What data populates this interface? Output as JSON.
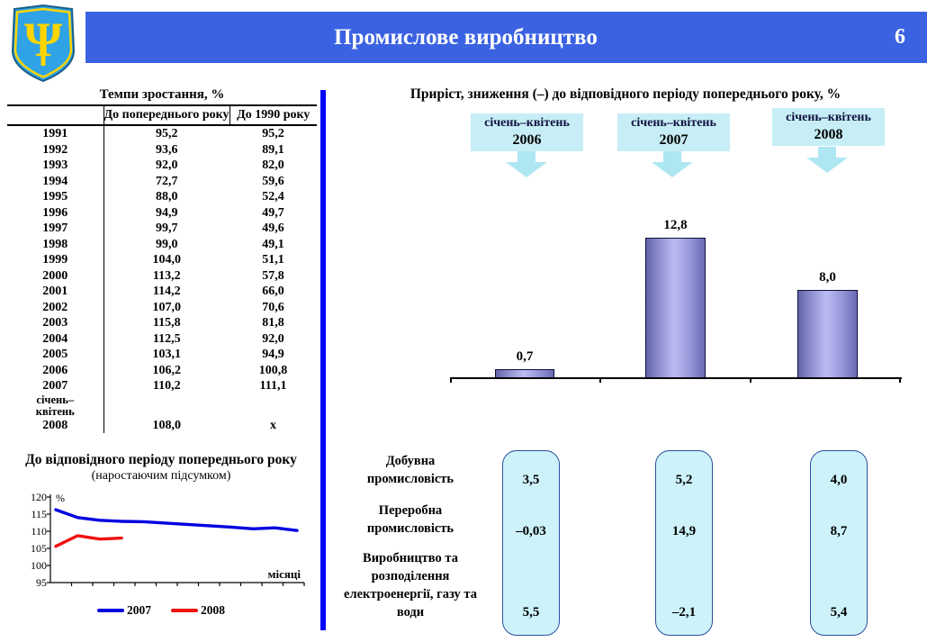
{
  "header": {
    "title": "Промислове виробництво",
    "page_number": "6",
    "coat_of_arms": "ukraine-trident-emblem"
  },
  "growth_table": {
    "title": "Темпи зростання, %",
    "col_headers": [
      "До попереднього року",
      "До 1990 року"
    ],
    "rows": [
      [
        "1991",
        "95,2",
        "95,2"
      ],
      [
        "1992",
        "93,6",
        "89,1"
      ],
      [
        "1993",
        "92,0",
        "82,0"
      ],
      [
        "1994",
        "72,7",
        "59,6"
      ],
      [
        "1995",
        "88,0",
        "52,4"
      ],
      [
        "1996",
        "94,9",
        "49,7"
      ],
      [
        "1997",
        "99,7",
        "49,6"
      ],
      [
        "1998",
        "99,0",
        "49,1"
      ],
      [
        "1999",
        "104,0",
        "51,1"
      ],
      [
        "2000",
        "113,2",
        "57,8"
      ],
      [
        "2001",
        "114,2",
        "66,0"
      ],
      [
        "2002",
        "107,0",
        "70,6"
      ],
      [
        "2003",
        "115,8",
        "81,8"
      ],
      [
        "2004",
        "112,5",
        "92,0"
      ],
      [
        "2005",
        "103,1",
        "94,9"
      ],
      [
        "2006",
        "106,2",
        "100,8"
      ],
      [
        "2007",
        "110,2",
        "111,1"
      ]
    ],
    "last_row": {
      "period_line1": "січень–",
      "period_line2": "квітень",
      "year": "2008",
      "to_prev_year": "108,0",
      "to_1990": "x"
    }
  },
  "line_chart_block": {
    "title": "До відповідного періоду попереднього року",
    "subtitle": "(наростаючим підсумком)",
    "percent_label": "%",
    "x_axis_label": "місяці",
    "legend": [
      {
        "label": "2007",
        "color": "#0000E0"
      },
      {
        "label": "2008",
        "color": "#EE1111"
      }
    ]
  },
  "right_panel": {
    "title": "Приріст, зниження (–) до відповідного періоду попереднього року, %",
    "period_boxes": [
      {
        "line1": "січень–квітень",
        "year": "2006"
      },
      {
        "line1": "січень–квітень",
        "year": "2007"
      },
      {
        "line1": "січень–квітень",
        "year": "2008"
      }
    ],
    "sector_rows": [
      {
        "label": "Добувна промисловість",
        "values": [
          "3,5",
          "5,2",
          "4,0"
        ]
      },
      {
        "label": "Переробна промисловість",
        "values": [
          "–0,03",
          "14,9",
          "8,7"
        ]
      },
      {
        "label": "Виробництво та розподілення електроенергії, газу та води",
        "values": [
          "5,5",
          "–2,1",
          "5,4"
        ]
      }
    ]
  },
  "chart_data": [
    {
      "type": "line",
      "title": "До відповідного періоду попереднього року (наростаючим підсумком)",
      "xlabel": "місяці",
      "ylabel": "%",
      "ylim": [
        95,
        120
      ],
      "yticks": [
        120,
        115,
        110,
        105,
        100,
        95
      ],
      "x_months": [
        1,
        2,
        3,
        4,
        5,
        6,
        7,
        8,
        9,
        10,
        11,
        12
      ],
      "grid": false,
      "legend_position": "bottom",
      "series": [
        {
          "name": "2007",
          "color": "#0000E0",
          "values": [
            116.3,
            114.0,
            113.2,
            112.9,
            112.8,
            112.4,
            112.0,
            111.6,
            111.2,
            110.7,
            111.0,
            110.2
          ]
        },
        {
          "name": "2008",
          "color": "#EE1111",
          "values": [
            105.6,
            108.7,
            107.7,
            108.0
          ]
        }
      ]
    },
    {
      "type": "bar",
      "title": "Приріст, зниження (–) до відповідного періоду попереднього року, %",
      "categories": [
        "січень–квітень 2006",
        "січень–квітень 2007",
        "січень–квітень 2008"
      ],
      "values": [
        0.7,
        12.8,
        8.0
      ],
      "labels": [
        "0,7",
        "12,8",
        "8,0"
      ],
      "ylim": [
        0,
        14
      ],
      "bar_color": "#9595D8",
      "grid": false
    }
  ],
  "colors": {
    "banner_blue": "#3B62E2",
    "divider_blue": "#0000FF",
    "cyan_box": "#C7EEF6",
    "cyan_arrow": "#AEE7F2",
    "pill_fill": "#CDF2F9",
    "pill_border": "#2B4EA2",
    "bar_fill": "#9595D8",
    "line_2007": "#0000E0",
    "line_2008": "#EE1111"
  }
}
